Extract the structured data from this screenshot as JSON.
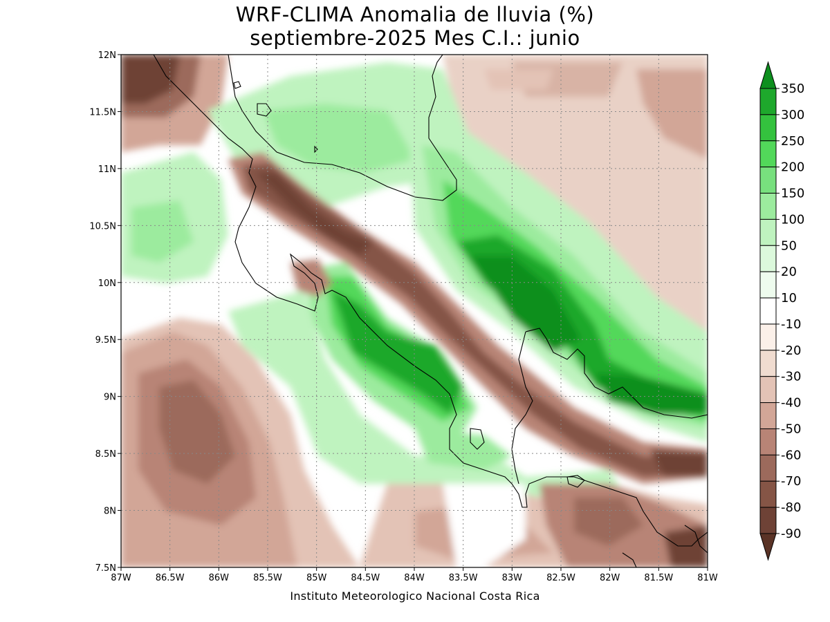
{
  "map": {
    "title": "WRF-CLIMA Anomalia de lluvia (%)",
    "subtitle": "septiembre-2025 Mes C.I.: junio",
    "credit": "Instituto Meteorologico Nacional Costa Rica",
    "lon_labels": [
      "87W",
      "86.5W",
      "86W",
      "85.5W",
      "85W",
      "84.5W",
      "84W",
      "83.5W",
      "83W",
      "82.5W",
      "82W",
      "81.5W",
      "81W"
    ],
    "lat_labels": [
      "7.5N",
      "8N",
      "8.5N",
      "9N",
      "9.5N",
      "10N",
      "10.5N",
      "11N",
      "11.5N",
      "12N"
    ]
  },
  "colorbar": {
    "labels": [
      "350",
      "300",
      "250",
      "200",
      "150",
      "100",
      "50",
      "20",
      "10",
      "-10",
      "-20",
      "-30",
      "-40",
      "-50",
      "-60",
      "-70",
      "-80",
      "-90"
    ],
    "colors": {
      "g350": "#0d8f1e",
      "g300": "#1ea82c",
      "g250": "#34c23e",
      "g200": "#52d85a",
      "g150": "#78e07e",
      "g100": "#9ceb9e",
      "g50": "#bff3bf",
      "g20": "#dcf9dc",
      "g10": "#eefcee",
      "zero": "#ffffff",
      "b10": "#fbf0e9",
      "b20": "#f0dcd0",
      "b30": "#e3c3b6",
      "b40": "#d2a697",
      "b50": "#b88476",
      "b60": "#9c6a5c",
      "b70": "#855546",
      "b80": "#6e4236",
      "b90": "#5a3326"
    }
  }
}
